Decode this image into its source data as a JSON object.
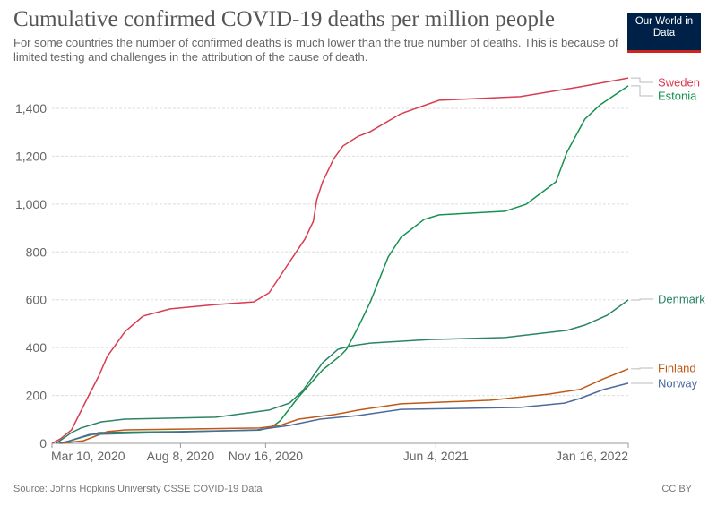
{
  "header": {
    "title": "Cumulative confirmed COVID-19 deaths per million people",
    "subtitle": "For some countries the number of confirmed deaths is much lower than the true number of deaths. This is because of limited testing and challenges in the attribution of the cause of death.",
    "logo_text": "Our World in Data"
  },
  "footer": {
    "source": "Source: Johns Hopkins University CSSE COVID-19 Data",
    "license": "CC BY"
  },
  "chart_data": {
    "type": "line",
    "title": "Cumulative confirmed COVID-19 deaths per million people",
    "xlabel": "",
    "ylabel": "",
    "xlim": [
      "2020-03-10",
      "2022-01-16"
    ],
    "ylim": [
      0,
      1400
    ],
    "grid": "horizontal dashed",
    "legend": "right, labels at line ends",
    "x_ticks": [
      {
        "date": "2020-03-10",
        "label": "Mar 10, 2020"
      },
      {
        "date": "2020-08-08",
        "label": "Aug 8, 2020"
      },
      {
        "date": "2020-11-16",
        "label": "Nov 16, 2020"
      },
      {
        "date": "2021-06-04",
        "label": "Jun 4, 2021"
      },
      {
        "date": "2022-01-16",
        "label": "Jan 16, 2022"
      }
    ],
    "y_ticks": [
      {
        "value": 0,
        "label": "0"
      },
      {
        "value": 200,
        "label": "200"
      },
      {
        "value": 400,
        "label": "400"
      },
      {
        "value": 600,
        "label": "600"
      },
      {
        "value": 800,
        "label": "800"
      },
      {
        "value": 1000,
        "label": "1,000"
      },
      {
        "value": 1200,
        "label": "1,200"
      },
      {
        "value": 1400,
        "label": "1,400"
      }
    ],
    "series": [
      {
        "name": "Sweden",
        "color": "#d73c50",
        "points": [
          [
            "2020-03-10",
            0
          ],
          [
            "2020-03-20",
            19
          ],
          [
            "2020-04-02",
            56
          ],
          [
            "2020-04-23",
            206
          ],
          [
            "2020-05-04",
            281
          ],
          [
            "2020-05-14",
            363
          ],
          [
            "2020-06-04",
            468
          ],
          [
            "2020-06-25",
            532
          ],
          [
            "2020-07-27",
            562
          ],
          [
            "2020-09-18",
            580
          ],
          [
            "2020-11-02",
            591
          ],
          [
            "2020-11-20",
            629
          ],
          [
            "2020-12-11",
            741
          ],
          [
            "2021-01-01",
            853
          ],
          [
            "2021-01-11",
            928
          ],
          [
            "2021-01-15",
            1018
          ],
          [
            "2021-01-22",
            1093
          ],
          [
            "2021-02-04",
            1190
          ],
          [
            "2021-02-15",
            1243
          ],
          [
            "2021-03-05",
            1284
          ],
          [
            "2021-03-19",
            1303
          ],
          [
            "2021-04-24",
            1378
          ],
          [
            "2021-06-08",
            1434
          ],
          [
            "2021-09-11",
            1449
          ],
          [
            "2021-11-20",
            1490
          ],
          [
            "2022-01-16",
            1527
          ]
        ]
      },
      {
        "name": "Estonia",
        "color": "#16914f",
        "points": [
          [
            "2020-03-22",
            0
          ],
          [
            "2020-04-09",
            20
          ],
          [
            "2020-05-04",
            45
          ],
          [
            "2020-08-07",
            49
          ],
          [
            "2020-11-09",
            55
          ],
          [
            "2020-11-23",
            67
          ],
          [
            "2020-12-03",
            94
          ],
          [
            "2020-12-25",
            195
          ],
          [
            "2021-01-22",
            307
          ],
          [
            "2021-02-12",
            367
          ],
          [
            "2021-02-19",
            393
          ],
          [
            "2021-03-05",
            487
          ],
          [
            "2021-03-19",
            591
          ],
          [
            "2021-04-09",
            779
          ],
          [
            "2021-04-24",
            861
          ],
          [
            "2021-05-21",
            936
          ],
          [
            "2021-06-08",
            955
          ],
          [
            "2021-08-24",
            970
          ],
          [
            "2021-09-18",
            999
          ],
          [
            "2021-10-23",
            1093
          ],
          [
            "2021-11-05",
            1217
          ],
          [
            "2021-11-26",
            1355
          ],
          [
            "2021-12-14",
            1415
          ],
          [
            "2022-01-16",
            1494
          ]
        ]
      },
      {
        "name": "Denmark",
        "color": "#2b8465",
        "points": [
          [
            "2020-03-15",
            0
          ],
          [
            "2020-04-02",
            45
          ],
          [
            "2020-04-13",
            64
          ],
          [
            "2020-05-07",
            90
          ],
          [
            "2020-06-04",
            101
          ],
          [
            "2020-09-18",
            109
          ],
          [
            "2020-11-20",
            139
          ],
          [
            "2020-12-14",
            168
          ],
          [
            "2020-12-29",
            217
          ],
          [
            "2021-01-22",
            337
          ],
          [
            "2021-02-09",
            393
          ],
          [
            "2021-02-26",
            408
          ],
          [
            "2021-03-19",
            419
          ],
          [
            "2021-05-28",
            434
          ],
          [
            "2021-08-24",
            442
          ],
          [
            "2021-11-05",
            472
          ],
          [
            "2021-11-26",
            494
          ],
          [
            "2021-12-22",
            535
          ],
          [
            "2022-01-16",
            599
          ]
        ]
      },
      {
        "name": "Finland",
        "color": "#c05917",
        "points": [
          [
            "2020-03-20",
            0
          ],
          [
            "2020-04-16",
            11
          ],
          [
            "2020-05-14",
            49
          ],
          [
            "2020-06-04",
            56
          ],
          [
            "2020-11-09",
            64
          ],
          [
            "2020-12-03",
            75
          ],
          [
            "2020-12-25",
            101
          ],
          [
            "2021-02-05",
            120
          ],
          [
            "2021-03-05",
            139
          ],
          [
            "2021-04-24",
            165
          ],
          [
            "2021-08-07",
            180
          ],
          [
            "2021-10-15",
            206
          ],
          [
            "2021-11-20",
            225
          ],
          [
            "2021-12-18",
            270
          ],
          [
            "2022-01-16",
            311
          ]
        ]
      },
      {
        "name": "Norway",
        "color": "#4c6a9c",
        "points": [
          [
            "2020-03-18",
            0
          ],
          [
            "2020-03-30",
            10
          ],
          [
            "2020-04-23",
            37
          ],
          [
            "2020-06-04",
            41
          ],
          [
            "2020-11-06",
            56
          ],
          [
            "2020-12-14",
            75
          ],
          [
            "2021-01-19",
            101
          ],
          [
            "2021-03-05",
            116
          ],
          [
            "2021-04-24",
            142
          ],
          [
            "2021-09-11",
            150
          ],
          [
            "2021-11-02",
            168
          ],
          [
            "2021-11-20",
            187
          ],
          [
            "2021-12-18",
            225
          ],
          [
            "2022-01-16",
            251
          ]
        ]
      }
    ]
  }
}
